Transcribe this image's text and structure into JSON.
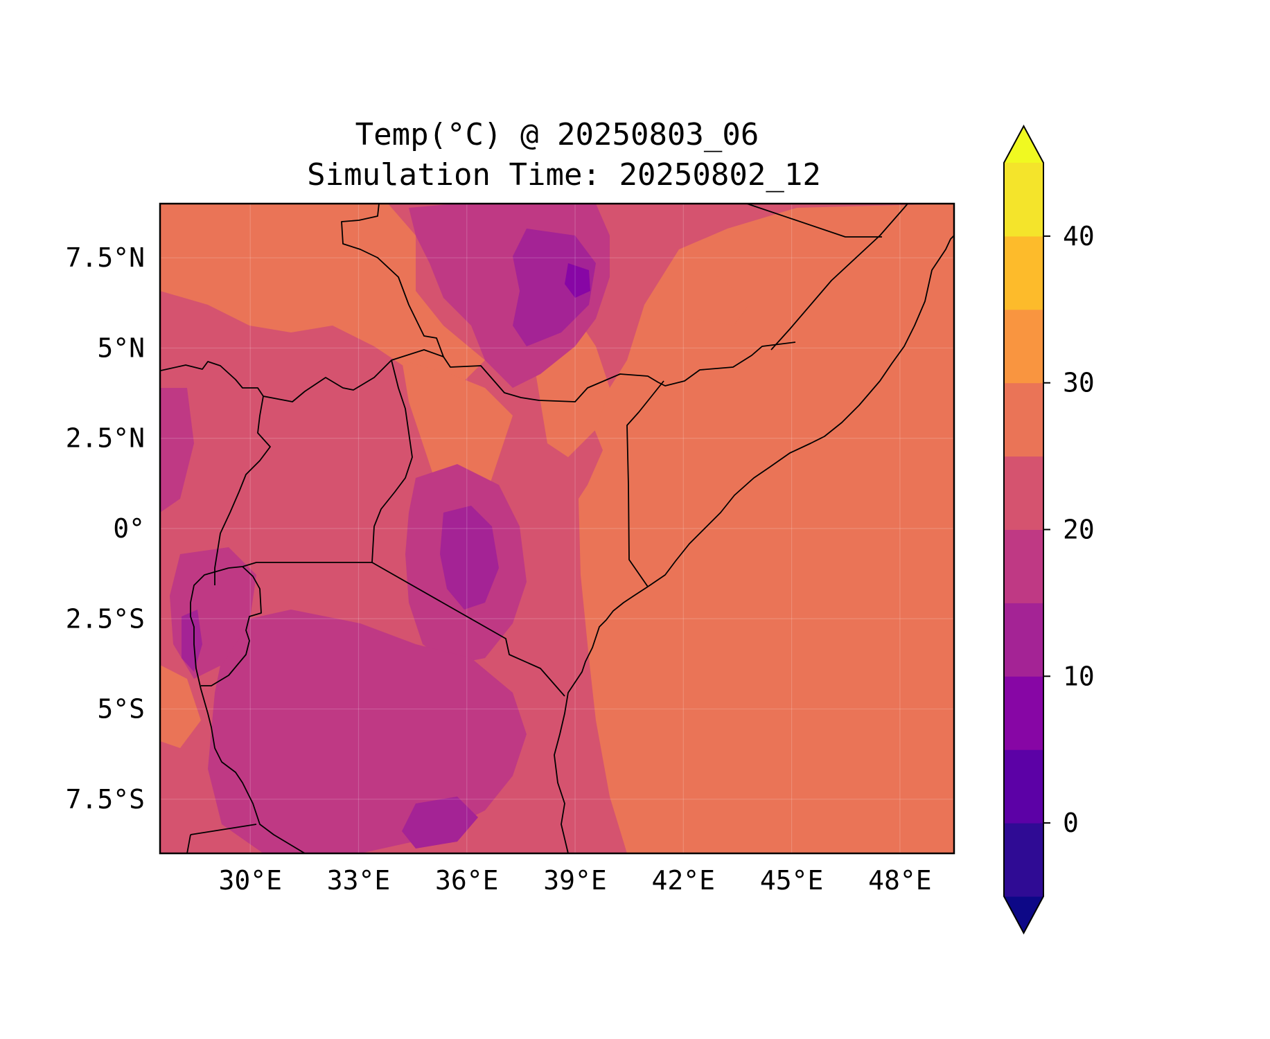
{
  "title": {
    "line1": "Temp(°C) @ 20250803_06",
    "line2": "Simulation Time: 20250802_12"
  },
  "map": {
    "lon_range": [
      27.5,
      49.5
    ],
    "lat_range": [
      -9.0,
      9.0
    ],
    "lon_ticks": [
      {
        "value": 30,
        "label": "30°E"
      },
      {
        "value": 33,
        "label": "33°E"
      },
      {
        "value": 36,
        "label": "36°E"
      },
      {
        "value": 39,
        "label": "39°E"
      },
      {
        "value": 42,
        "label": "42°E"
      },
      {
        "value": 45,
        "label": "45°E"
      },
      {
        "value": 48,
        "label": "48°E"
      }
    ],
    "lat_ticks": [
      {
        "value": 7.5,
        "label": "7.5°N"
      },
      {
        "value": 5,
        "label": "5°N"
      },
      {
        "value": 2.5,
        "label": "2.5°N"
      },
      {
        "value": 0,
        "label": "0°"
      },
      {
        "value": -2.5,
        "label": "2.5°S"
      },
      {
        "value": -5,
        "label": "5°S"
      },
      {
        "value": -7.5,
        "label": "7.5°S"
      }
    ],
    "colors": {
      "c20_25": "#d5536f",
      "c25_30": "#ea7457",
      "c15_20": "#bf3984",
      "c10_15": "#a42395",
      "c5_10": "#8706a5"
    }
  },
  "colorbar": {
    "min": -5,
    "max": 45,
    "levels": [
      {
        "from": -5,
        "to": 0,
        "color": "#2f0b94"
      },
      {
        "from": 0,
        "to": 5,
        "color": "#5c01a6"
      },
      {
        "from": 5,
        "to": 10,
        "color": "#8706a5"
      },
      {
        "from": 10,
        "to": 15,
        "color": "#a42395"
      },
      {
        "from": 15,
        "to": 20,
        "color": "#bf3984"
      },
      {
        "from": 20,
        "to": 25,
        "color": "#d5536f"
      },
      {
        "from": 25,
        "to": 30,
        "color": "#ea7457"
      },
      {
        "from": 30,
        "to": 35,
        "color": "#f99540"
      },
      {
        "from": 35,
        "to": 40,
        "color": "#fdbb2b"
      },
      {
        "from": 40,
        "to": 45,
        "color": "#f4e42b"
      }
    ],
    "under_color": "#0d0887",
    "over_color": "#f0f921",
    "ticks": [
      {
        "value": 0,
        "label": "0"
      },
      {
        "value": 10,
        "label": "10"
      },
      {
        "value": 20,
        "label": "20"
      },
      {
        "value": 30,
        "label": "30"
      },
      {
        "value": 40,
        "label": "40"
      }
    ]
  }
}
